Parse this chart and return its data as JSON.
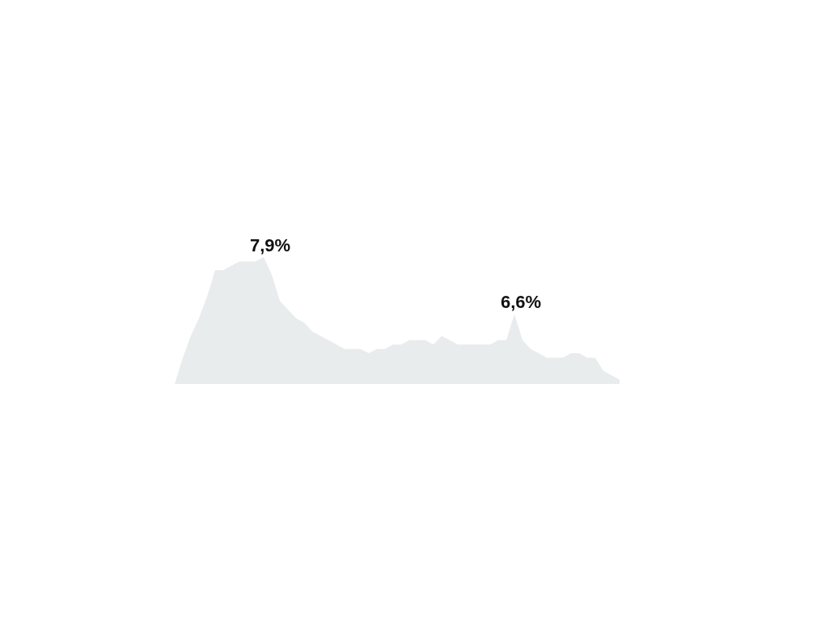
{
  "chart_data": {
    "type": "area",
    "color": "#e8eced",
    "tick_labels": false,
    "categories": [
      null,
      null,
      null,
      null,
      null,
      null,
      null,
      null,
      null,
      null,
      null,
      null,
      null,
      null,
      null,
      null,
      null,
      null,
      null,
      null,
      null,
      null,
      null,
      null,
      null,
      null,
      null,
      null,
      null,
      null,
      null,
      null,
      null,
      null,
      null,
      null,
      null,
      null,
      null,
      null,
      null,
      null,
      null,
      null,
      null,
      null,
      null,
      null,
      null,
      null,
      null,
      null,
      null,
      null,
      null,
      null
    ],
    "values": [
      5.0,
      5.6,
      6.1,
      6.5,
      7.0,
      7.6,
      7.6,
      7.7,
      7.8,
      7.8,
      7.8,
      7.9,
      7.5,
      6.9,
      6.7,
      6.5,
      6.4,
      6.2,
      6.1,
      6.0,
      5.9,
      5.8,
      5.8,
      5.8,
      5.7,
      5.8,
      5.8,
      5.9,
      5.9,
      6.0,
      6.0,
      6.0,
      5.9,
      6.1,
      6.0,
      5.9,
      5.9,
      5.9,
      5.9,
      5.9,
      6.0,
      6.0,
      6.6,
      6.0,
      5.8,
      5.7,
      5.6,
      5.6,
      5.6,
      5.7,
      5.7,
      5.6,
      5.6,
      5.3,
      5.2,
      5.1
    ],
    "value_labels": [
      null,
      null,
      null,
      null,
      null,
      null,
      null,
      null,
      null,
      null,
      null,
      "7,9%",
      null,
      null,
      null,
      null,
      null,
      null,
      null,
      null,
      null,
      null,
      null,
      null,
      null,
      null,
      null,
      null,
      null,
      null,
      null,
      null,
      null,
      null,
      null,
      null,
      null,
      null,
      null,
      null,
      null,
      null,
      "6,6%",
      null,
      null,
      null,
      null,
      null,
      null,
      null,
      null,
      null,
      null,
      null,
      null,
      null
    ]
  }
}
